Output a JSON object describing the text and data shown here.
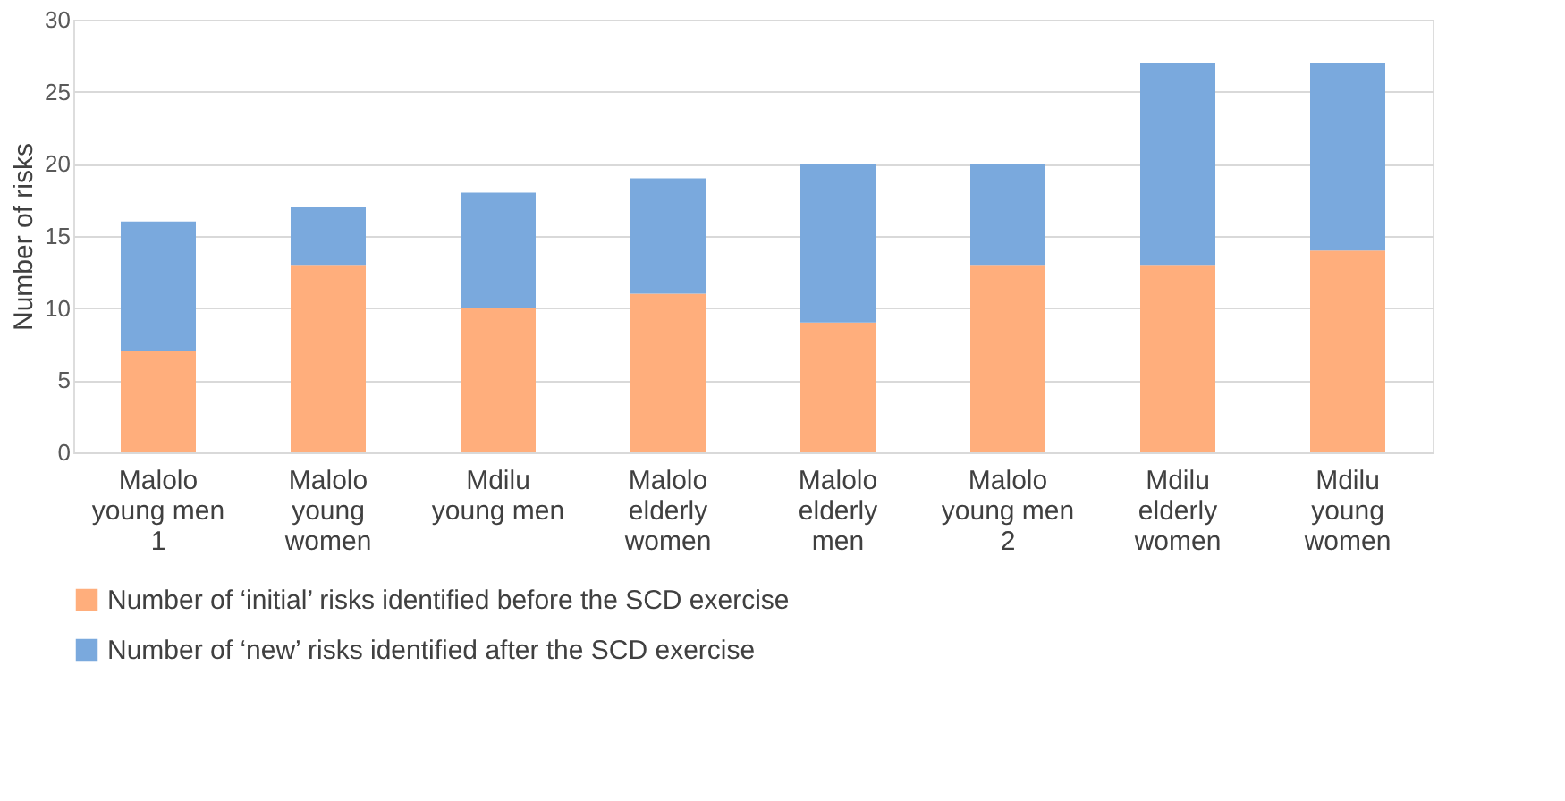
{
  "chart_data": {
    "type": "bar",
    "stacked": true,
    "ylabel": "Number of risks",
    "categories": [
      "Malolo young men 1",
      "Malolo young women",
      "Mdilu young men",
      "Malolo elderly women",
      "Malolo elderly men",
      "Malolo young men 2",
      "Mdilu elderly women",
      "Mdilu young women"
    ],
    "series": [
      {
        "name": "Number of ‘initial’ risks identified before the SCD exercise",
        "color": "#ffae7c",
        "values": [
          7,
          13,
          10,
          11,
          9,
          13,
          13,
          14
        ]
      },
      {
        "name": "Number of ‘new’ risks identified after the SCD exercise",
        "color": "#7aa9dd",
        "values": [
          9,
          4,
          8,
          8,
          11,
          7,
          14,
          13
        ]
      }
    ],
    "ylim": [
      0,
      30
    ],
    "yticks": [
      0,
      5,
      10,
      15,
      20,
      25,
      30
    ],
    "grid": "y",
    "legend": "bottom"
  }
}
